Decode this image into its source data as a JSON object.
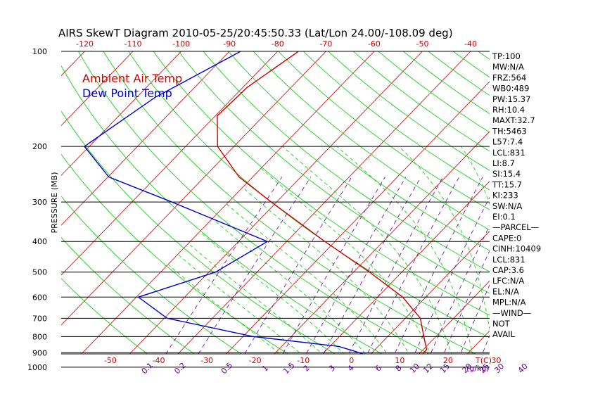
{
  "chart_data": {
    "type": "line",
    "title": "AIRS SkewT Diagram 2010-05-25/20:45:50.33 (Lat/Lon 24.00/-108.09 deg)",
    "ylabel": "PRESSURE (MB)",
    "xlabel": "T(C)",
    "mixing_ratio_unit_label": "(g/kg)",
    "pressure_ticks": [
      100,
      200,
      300,
      400,
      500,
      600,
      700,
      800,
      900,
      1000
    ],
    "top_temp_ticks": [
      -120,
      -110,
      -100,
      -90,
      -80,
      -70,
      -60,
      -50,
      -40
    ],
    "bottom_temp_ticks": [
      -50,
      -40,
      -30,
      -20,
      -10,
      0,
      10,
      20,
      30
    ],
    "mixing_ratio_ticks": [
      "0.1",
      "0.2",
      "0.5",
      "1",
      "1.5",
      "2",
      "3",
      "4",
      "6",
      "8",
      "10",
      "12",
      "15",
      "20",
      "25",
      "30",
      "40"
    ],
    "ylim": [
      100,
      1050
    ],
    "xlim_bottom": [
      -50,
      45
    ],
    "legend": [
      {
        "name": "Ambient Air Temp",
        "color": "#cc0000"
      },
      {
        "name": "Dew Point Temp",
        "color": "#0000cc"
      }
    ],
    "series": [
      {
        "name": "Ambient Air Temp",
        "color": "#cc0000",
        "points": [
          {
            "p": 100,
            "t": -75.7
          },
          {
            "p": 130,
            "t": -79.1
          },
          {
            "p": 160,
            "t": -79.6
          },
          {
            "p": 200,
            "t": -73.4
          },
          {
            "p": 250,
            "t": -62.8
          },
          {
            "p": 300,
            "t": -51.1
          },
          {
            "p": 400,
            "t": -32.1
          },
          {
            "p": 500,
            "t": -16.7
          },
          {
            "p": 600,
            "t": -4.8
          },
          {
            "p": 700,
            "t": 3.1
          },
          {
            "p": 800,
            "t": 7.5
          },
          {
            "p": 880,
            "t": 10.7
          },
          {
            "p": 920,
            "t": 10.7
          },
          {
            "p": 1000,
            "t": 14.3
          }
        ]
      },
      {
        "name": "Dew Point Temp",
        "color": "#0000cc",
        "points": [
          {
            "p": 100,
            "t": -87.7
          },
          {
            "p": 140,
            "t": -96.2
          },
          {
            "p": 200,
            "t": -101.0
          },
          {
            "p": 250,
            "t": -89.8
          },
          {
            "p": 300,
            "t": -71.7
          },
          {
            "p": 400,
            "t": -44.0
          },
          {
            "p": 500,
            "t": -48.6
          },
          {
            "p": 600,
            "t": -59.6
          },
          {
            "p": 700,
            "t": -49.4
          },
          {
            "p": 800,
            "t": -27.9
          },
          {
            "p": 860,
            "t": -8.1
          },
          {
            "p": 920,
            "t": 0.0
          },
          {
            "p": 1000,
            "t": 5.3
          }
        ]
      }
    ]
  },
  "indices": [
    "TP:100",
    "MW:N/A",
    "FRZ:564",
    "WB0:489",
    "PW:15.37",
    "RH:10.4",
    "MAXT:32.7",
    "TH:5463",
    "L57:7.4",
    "LCL:831",
    "LI:8.7",
    "SI:15.4",
    "TT:15.7",
    "KI:233",
    "SW:N/A",
    "EI:0.1",
    "—PARCEL—",
    "CAPE:0",
    "CINH:10409",
    "LCL:831",
    "CAP:3.6",
    "LFC:N/A",
    "EL:N/A",
    "MPL:N/A",
    "—WIND—",
    "NOT",
    "AVAIL"
  ],
  "colors": {
    "temperature_line": "#cc0000",
    "dewpoint_line": "#0000cc",
    "isotherm": "#cc0000",
    "dry_adiabat": "#00cc00",
    "moist_adiabat": "#00cc00",
    "mixing_ratio": "#660099",
    "isobar": "#000000"
  }
}
